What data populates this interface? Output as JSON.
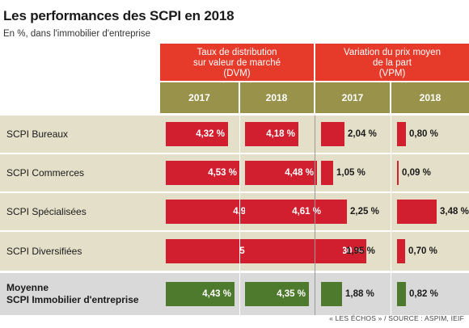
{
  "title": "Les performances des SCPI en 2018",
  "subtitle": "En %, dans l'immobilier d'entreprise",
  "source": "« LES ÉCHOS » / SOURCE : ASPIM, IEIF",
  "colors": {
    "header_red": "#e63a2a",
    "year_band": "#98924a",
    "bar_red": "#d11f2f",
    "bar_green": "#4e7a2d",
    "row_beige": "#e4dfc8",
    "row_grey": "#d9d9d9"
  },
  "chart_data": {
    "type": "table",
    "groups": [
      {
        "label": "Taux de distribution\nsur valeur de marché\n(DVM)",
        "years": [
          "2017",
          "2018"
        ]
      },
      {
        "label": "Variation du prix moyen\nde la part\n(VPM)",
        "years": [
          "2017",
          "2018"
        ]
      }
    ],
    "rows": [
      {
        "label": "SCPI Bureaux",
        "dvm_2017": 4.32,
        "dvm_2018": 4.18,
        "vpm_2017": 2.04,
        "vpm_2018": 0.8,
        "text": [
          "4,32 %",
          "4,18 %",
          "2,04 %",
          "0,80 %"
        ]
      },
      {
        "label": "SCPI Commerces",
        "dvm_2017": 4.53,
        "dvm_2018": 4.48,
        "vpm_2017": 1.05,
        "vpm_2018": 0.09,
        "text": [
          "4,53 %",
          "4,48 %",
          "1,05 %",
          "0,09 %"
        ]
      },
      {
        "label": "SCPI Spécialisées",
        "dvm_2017": 4.94,
        "dvm_2018": 4.61,
        "vpm_2017": 2.25,
        "vpm_2018": 3.48,
        "text": [
          "4,94 %",
          "4,61 %",
          "2,25 %",
          "3,48 %"
        ]
      },
      {
        "label": "SCPI Diversifiées",
        "dvm_2017": 5.05,
        "dvm_2018": 5.3,
        "vpm_2017": 1.95,
        "vpm_2018": 0.7,
        "text": [
          "5,05 %",
          "5,30 %",
          "1,95 %",
          "0,70 %"
        ]
      },
      {
        "label": "Moyenne\nSCPI Immobilier d'entreprise",
        "dvm_2017": 4.43,
        "dvm_2018": 4.35,
        "vpm_2017": 1.88,
        "vpm_2018": 0.82,
        "text": [
          "4,43 %",
          "4,35 %",
          "1,88 %",
          "0,82 %"
        ],
        "average": true
      }
    ]
  }
}
